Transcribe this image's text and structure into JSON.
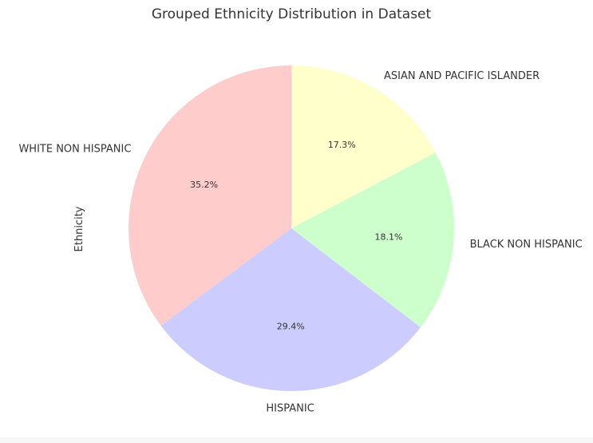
{
  "chart_data": {
    "type": "pie",
    "title": "Grouped Ethnicity Distribution in Dataset",
    "ylabel": "Ethnicity",
    "start_angle_deg": 90,
    "direction": "counterclockwise",
    "slices": [
      {
        "label": "WHITE NON HISPANIC",
        "value": 35.2,
        "pct_label": "35.2%",
        "color": "#ffcccc"
      },
      {
        "label": "HISPANIC",
        "value": 29.4,
        "pct_label": "29.4%",
        "color": "#ccccff"
      },
      {
        "label": "BLACK NON HISPANIC",
        "value": 18.1,
        "pct_label": "18.1%",
        "color": "#ccffcc"
      },
      {
        "label": "ASIAN AND PACIFIC ISLANDER",
        "value": 17.3,
        "pct_label": "17.3%",
        "color": "#ffffcc"
      }
    ]
  }
}
